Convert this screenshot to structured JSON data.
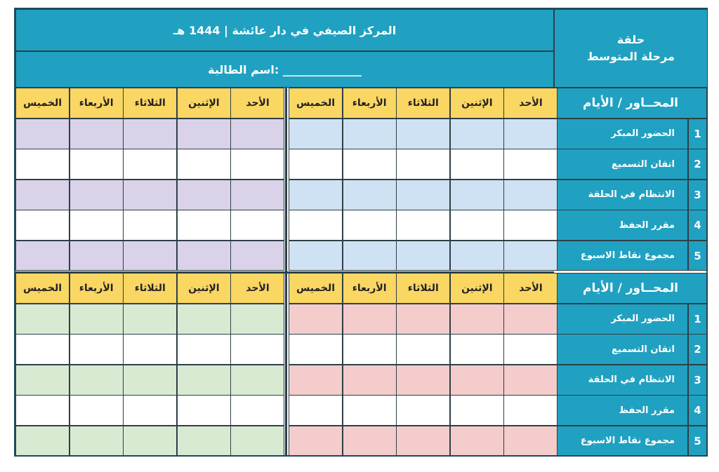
{
  "header": {
    "title": "المركز الصيفي في دار عائشة | 1444 هـ",
    "student_label": "اسم الطالبة: ______________",
    "circle_title": "حلقة",
    "circle_level": "مرحلة المتوسط"
  },
  "section_header": "المحــاور / الأيام",
  "days": [
    "الأحد",
    "الإثنين",
    "الثلاثاء",
    "الأربعاء",
    "الخميس"
  ],
  "criteria": [
    {
      "num": "1",
      "label": "الحضور المبكر"
    },
    {
      "num": "2",
      "label": "اتقان التسميع"
    },
    {
      "num": "3",
      "label": "الانتظام في الحلقة"
    },
    {
      "num": "4",
      "label": "مقرر الحفظ"
    },
    {
      "num": "5",
      "label": "مجموع نقاط الاسبوع"
    }
  ],
  "colors": {
    "teal": "#20a1c1",
    "day_header": "#fad663",
    "block1_row": "#cfe2f3",
    "block2_row": "#d9d2e9",
    "block3_row": "#f4cccc",
    "block4_row": "#d9ead3"
  }
}
